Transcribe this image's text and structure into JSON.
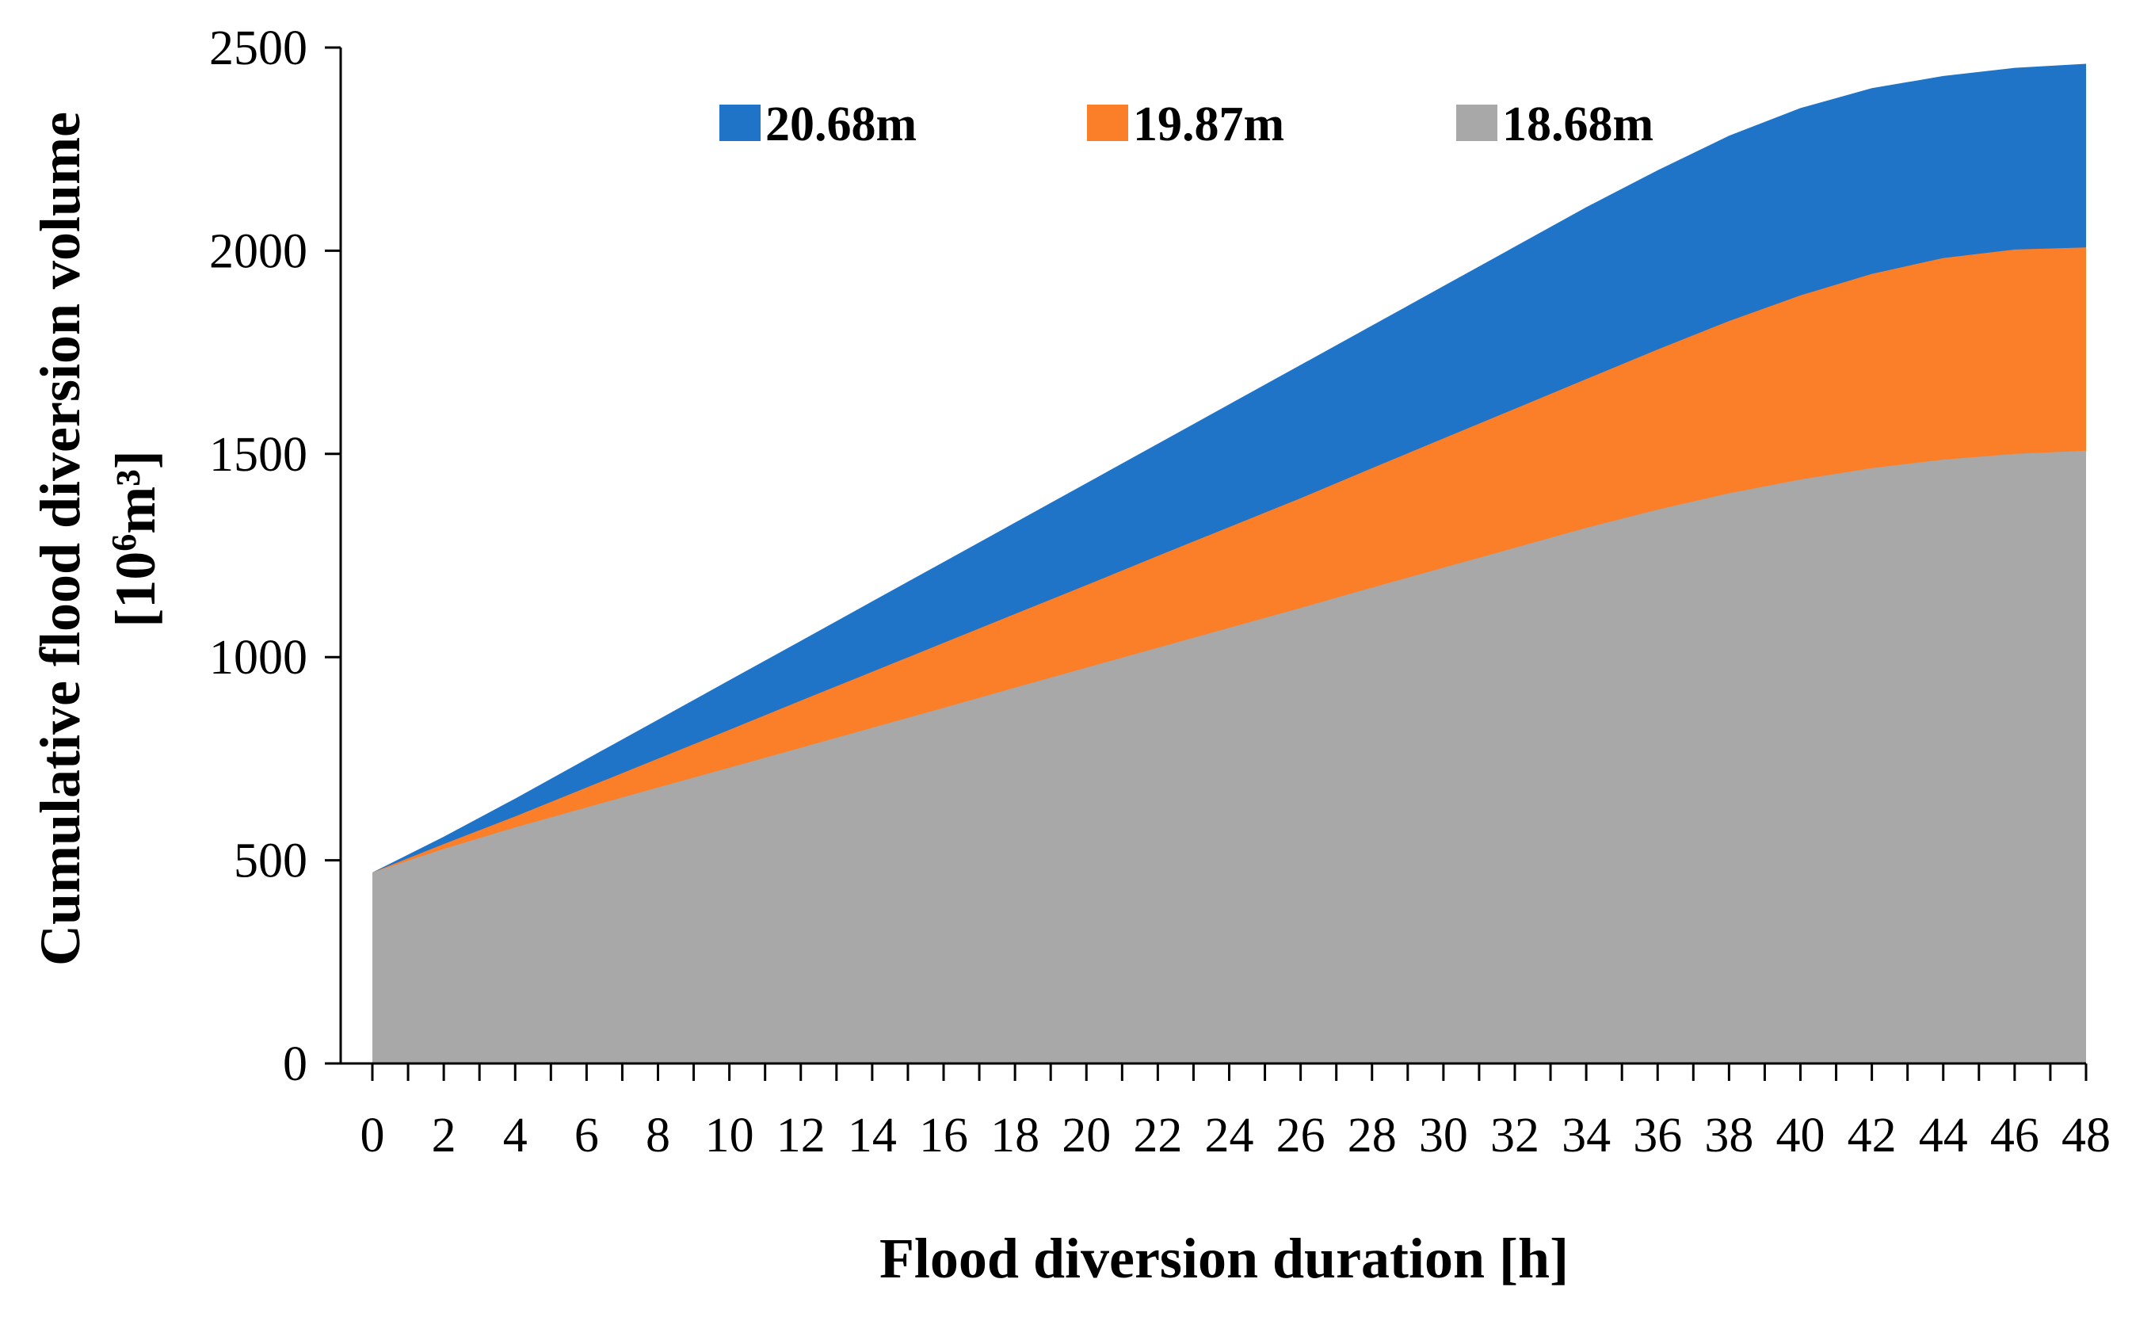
{
  "chart_data": {
    "type": "area",
    "title": "",
    "xlabel": "Flood diversion duration [h]",
    "ylabel_line1": "Cumulative flood diversion volume",
    "ylabel_line2_base": "[10",
    "ylabel_line2_sup": "6",
    "ylabel_line2_tail": "m³]",
    "xlim": [
      0,
      48
    ],
    "ylim": [
      0,
      2500
    ],
    "xticks": [
      "0",
      "2",
      "4",
      "6",
      "8",
      "10",
      "12",
      "14",
      "16",
      "18",
      "20",
      "22",
      "24",
      "26",
      "28",
      "30",
      "32",
      "34",
      "36",
      "38",
      "40",
      "42",
      "44",
      "46",
      "48"
    ],
    "yticks": [
      "0",
      "500",
      "1000",
      "1500",
      "2000",
      "2500"
    ],
    "grid": false,
    "legend_position": "top-center",
    "x": [
      0,
      2,
      4,
      6,
      8,
      10,
      12,
      14,
      16,
      18,
      20,
      22,
      24,
      26,
      28,
      30,
      32,
      34,
      36,
      38,
      40,
      42,
      44,
      46,
      48
    ],
    "series": [
      {
        "name": "20.68m",
        "color": "#1f74c8",
        "values": [
          470,
          558,
          652,
          749,
          846,
          943,
          1040,
          1137,
          1234,
          1331,
          1428,
          1525,
          1622,
          1719,
          1816,
          1913,
          2010,
          2107,
          2198,
          2283,
          2351,
          2400,
          2430,
          2450,
          2460
        ]
      },
      {
        "name": "19.87m",
        "color": "#fb7f29",
        "values": [
          470,
          540,
          608,
          679,
          750,
          821,
          893,
          964,
          1035,
          1106,
          1177,
          1249,
          1320,
          1391,
          1465,
          1538,
          1611,
          1684,
          1757,
          1827,
          1890,
          1943,
          1982,
          2003,
          2008
        ]
      },
      {
        "name": "18.68m",
        "color": "#a8a8a8",
        "values": [
          470,
          528,
          581,
          630,
          679,
          728,
          777,
          826,
          875,
          925,
          974,
          1023,
          1072,
          1121,
          1171,
          1220,
          1269,
          1318,
          1363,
          1403,
          1437,
          1465,
          1486,
          1500,
          1508
        ]
      }
    ],
    "legend": [
      {
        "label": "20.68m",
        "color": "#1f74c8"
      },
      {
        "label": "19.87m",
        "color": "#fb7f29"
      },
      {
        "label": "18.68m",
        "color": "#a8a8a8"
      }
    ]
  }
}
